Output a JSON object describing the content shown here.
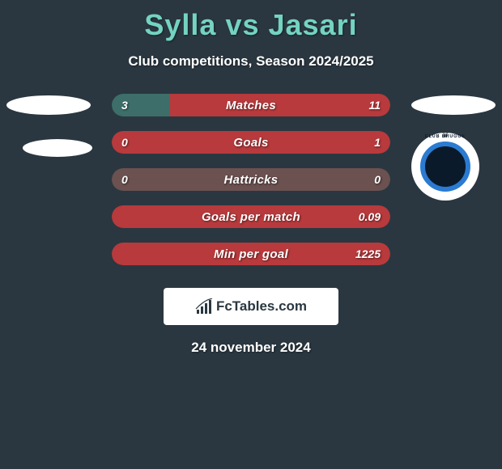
{
  "title": "Sylla vs Jasari",
  "subtitle": "Club competitions, Season 2024/2025",
  "date": "24 november 2024",
  "logo_text": "FcTables.com",
  "colors": {
    "background": "#2a3740",
    "title": "#74d3c3",
    "left_bar": "#3d6e69",
    "right_bar": "#b83a3c",
    "neutral_bar": "#6b5150"
  },
  "crest_label": "CLUB BRUGGE",
  "bars": [
    {
      "label": "Matches",
      "left_val": "3",
      "right_val": "11",
      "left_pct": 21,
      "left_color": "#3d6e69",
      "right_color": "#b83a3c"
    },
    {
      "label": "Goals",
      "left_val": "0",
      "right_val": "1",
      "left_pct": 0,
      "left_color": "#3d6e69",
      "right_color": "#b83a3c"
    },
    {
      "label": "Hattricks",
      "left_val": "0",
      "right_val": "0",
      "left_pct": 100,
      "single_color": "#6b5150"
    },
    {
      "label": "Goals per match",
      "left_val": "",
      "right_val": "0.09",
      "left_pct": 0,
      "left_color": "#3d6e69",
      "right_color": "#b83a3c"
    },
    {
      "label": "Min per goal",
      "left_val": "",
      "right_val": "1225",
      "left_pct": 0,
      "left_color": "#3d6e69",
      "right_color": "#b83a3c"
    }
  ]
}
